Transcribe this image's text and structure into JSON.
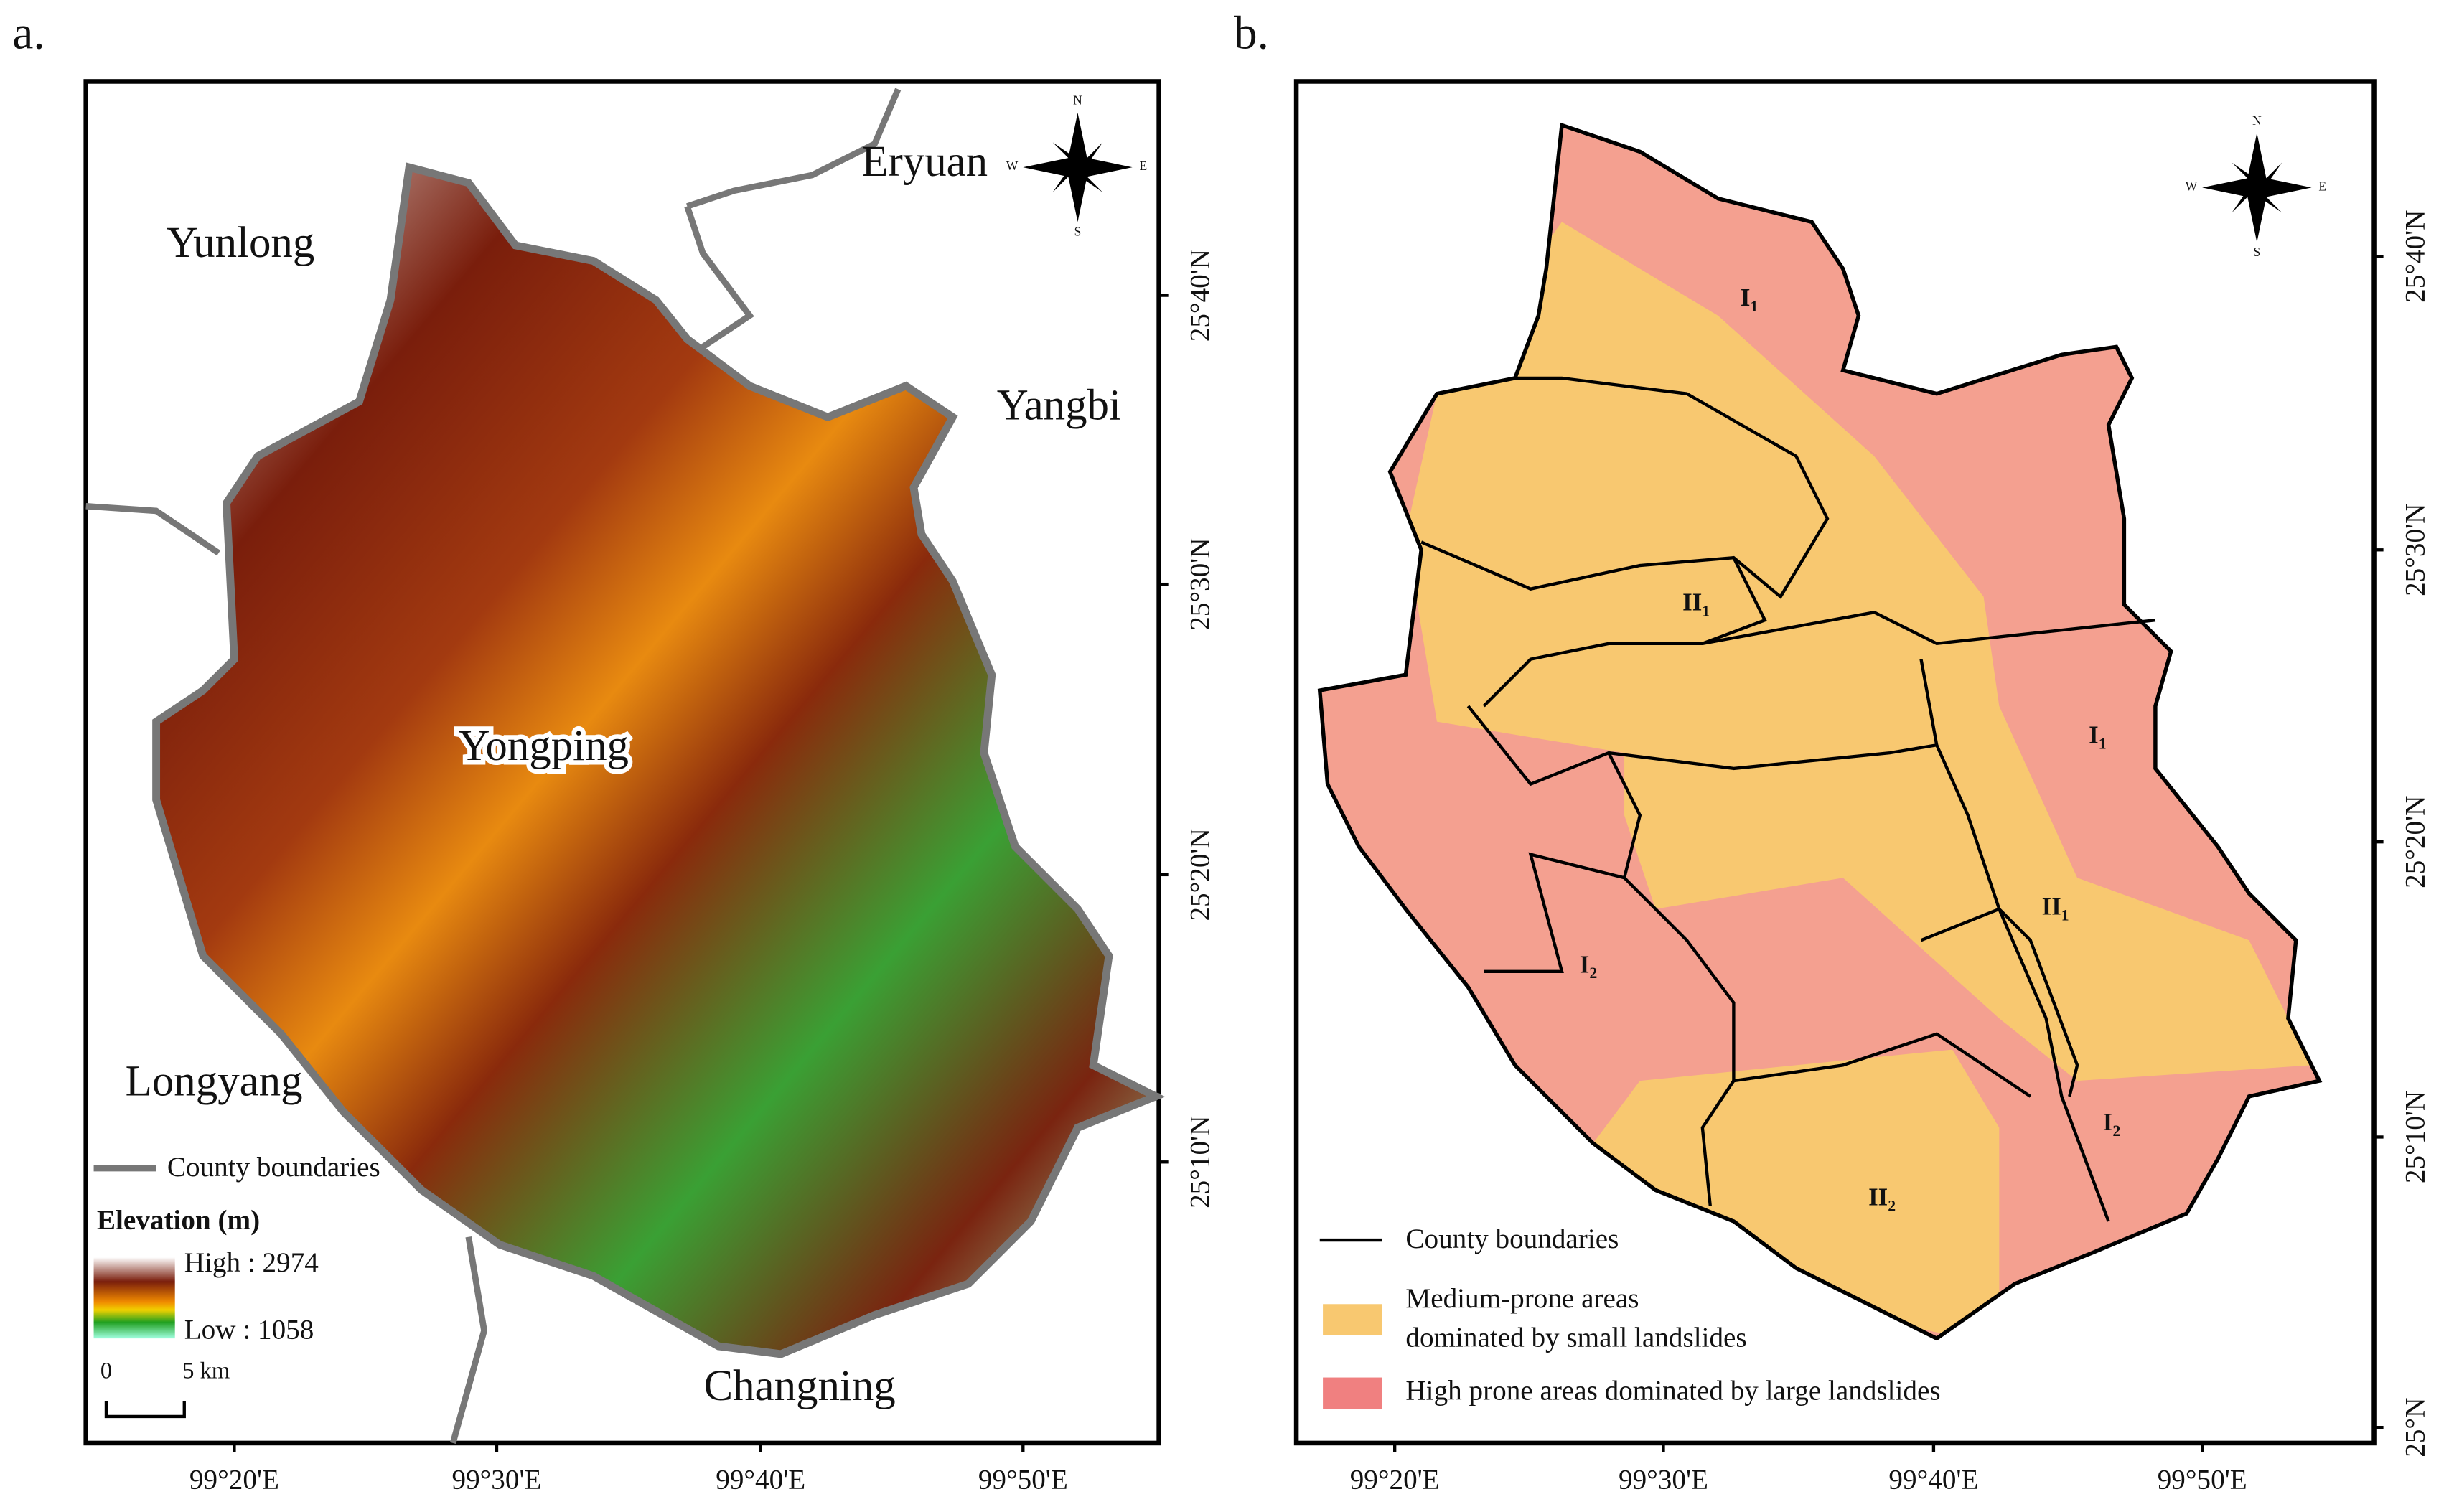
{
  "panel_a": {
    "label": "a.",
    "places": [
      "Eryuan",
      "Yunlong",
      "Yangbi",
      "Yongping",
      "Longyang",
      "Changning"
    ],
    "compass": [
      "N",
      "E",
      "S",
      "W"
    ],
    "legend": {
      "boundary": "County boundaries",
      "elevation_title": "Elevation (m)",
      "high": "High : 2974",
      "low": "Low : 1058",
      "scale_start": "0",
      "scale_end": "5 km"
    },
    "x_labels": [
      "99°20'E",
      "99°30'E",
      "99°40'E",
      "99°50'E"
    ],
    "y_labels": [
      "25°40'N",
      "25°30'N",
      "25°20'N",
      "25°10'N"
    ]
  },
  "panel_b": {
    "label": "b.",
    "compass": [
      "N",
      "E",
      "S",
      "W"
    ],
    "zones": [
      {
        "numeral": "I",
        "sub": "1"
      },
      {
        "numeral": "I",
        "sub": "1"
      },
      {
        "numeral": "II",
        "sub": "1"
      },
      {
        "numeral": "II",
        "sub": "1"
      },
      {
        "numeral": "I",
        "sub": "2"
      },
      {
        "numeral": "I",
        "sub": "2"
      },
      {
        "numeral": "II",
        "sub": "2"
      }
    ],
    "legend": {
      "boundary": "County boundaries",
      "medium": [
        "Medium-prone areas",
        "dominated by small landslides"
      ],
      "high": "High prone areas dominated by large landslides"
    },
    "x_labels": [
      "99°20'E",
      "99°30'E",
      "99°40'E",
      "99°50'E"
    ],
    "y_labels": [
      "25°40'N",
      "25°30'N",
      "25°20'N",
      "25°10'N",
      "25°N"
    ]
  }
}
